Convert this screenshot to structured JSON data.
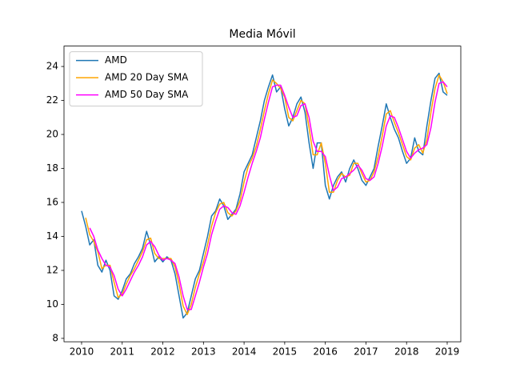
{
  "chart_data": {
    "type": "line",
    "title": "Media Móvil",
    "x": [
      2010.0,
      2010.1,
      2010.2,
      2010.3,
      2010.4,
      2010.5,
      2010.6,
      2010.7,
      2010.8,
      2010.9,
      2011.0,
      2011.1,
      2011.2,
      2011.3,
      2011.4,
      2011.5,
      2011.6,
      2011.7,
      2011.8,
      2011.9,
      2012.0,
      2012.1,
      2012.2,
      2012.3,
      2012.4,
      2012.5,
      2012.6,
      2012.7,
      2012.8,
      2012.9,
      2013.0,
      2013.1,
      2013.2,
      2013.3,
      2013.4,
      2013.5,
      2013.6,
      2013.7,
      2013.8,
      2013.9,
      2014.0,
      2014.1,
      2014.2,
      2014.3,
      2014.4,
      2014.5,
      2014.6,
      2014.7,
      2014.8,
      2014.9,
      2015.0,
      2015.1,
      2015.2,
      2015.3,
      2015.4,
      2015.5,
      2015.6,
      2015.7,
      2015.8,
      2015.9,
      2016.0,
      2016.1,
      2016.2,
      2016.3,
      2016.4,
      2016.5,
      2016.6,
      2016.7,
      2016.8,
      2016.9,
      2017.0,
      2017.1,
      2017.2,
      2017.3,
      2017.4,
      2017.5,
      2017.6,
      2017.7,
      2017.8,
      2017.9,
      2018.0,
      2018.1,
      2018.2,
      2018.3,
      2018.4,
      2018.5,
      2018.6,
      2018.7,
      2018.8,
      2018.9,
      2019.0
    ],
    "series": [
      {
        "name": "AMD",
        "color": "#1f77b4",
        "values": [
          15.5,
          14.6,
          13.5,
          13.8,
          12.3,
          11.9,
          12.6,
          12.0,
          10.5,
          10.3,
          10.8,
          11.5,
          11.8,
          12.4,
          12.8,
          13.3,
          14.3,
          13.5,
          12.5,
          12.8,
          12.5,
          12.8,
          12.6,
          11.8,
          10.5,
          9.2,
          9.5,
          10.5,
          11.5,
          12.0,
          13.0,
          14.0,
          15.2,
          15.5,
          16.2,
          15.8,
          15.0,
          15.3,
          15.6,
          16.5,
          17.8,
          18.3,
          18.8,
          19.8,
          20.8,
          22.0,
          22.8,
          23.5,
          22.5,
          22.8,
          21.5,
          20.5,
          21.0,
          21.8,
          22.2,
          21.3,
          19.5,
          18.0,
          19.5,
          19.5,
          17.0,
          16.2,
          17.0,
          17.5,
          17.8,
          17.2,
          18.0,
          18.5,
          18.0,
          17.3,
          17.0,
          17.5,
          18.0,
          19.3,
          20.5,
          21.8,
          21.0,
          20.3,
          19.8,
          19.0,
          18.3,
          18.6,
          19.8,
          19.0,
          18.8,
          20.5,
          22.0,
          23.3,
          23.6,
          22.5,
          22.3
        ]
      },
      {
        "name": "AMD 20 Day SMA",
        "color": "#ffa500",
        "values": [
          null,
          15.1,
          14.1,
          13.7,
          13.1,
          12.1,
          12.3,
          12.3,
          11.3,
          10.4,
          10.6,
          11.2,
          11.7,
          12.1,
          12.6,
          13.1,
          13.8,
          13.9,
          13.0,
          12.7,
          12.7,
          12.7,
          12.7,
          12.2,
          11.2,
          9.9,
          9.4,
          10.0,
          11.0,
          11.8,
          12.5,
          13.5,
          14.6,
          15.4,
          15.9,
          16.0,
          15.4,
          15.2,
          15.5,
          16.1,
          17.2,
          18.1,
          18.6,
          19.3,
          20.3,
          21.4,
          22.4,
          23.2,
          23.0,
          22.7,
          22.2,
          21.0,
          20.8,
          21.4,
          22.0,
          21.8,
          20.4,
          18.8,
          18.8,
          19.5,
          18.3,
          16.6,
          16.6,
          17.3,
          17.7,
          17.5,
          17.6,
          18.3,
          18.3,
          17.7,
          17.2,
          17.3,
          17.8,
          18.7,
          19.9,
          21.2,
          21.4,
          20.7,
          20.1,
          19.4,
          18.7,
          18.5,
          19.2,
          19.4,
          18.9,
          19.7,
          21.3,
          22.7,
          23.5,
          23.1,
          22.4
        ]
      },
      {
        "name": "AMD 50 Day SMA",
        "color": "#ff00ff",
        "values": [
          null,
          null,
          14.5,
          14.0,
          13.2,
          12.7,
          12.3,
          12.2,
          11.7,
          10.9,
          10.5,
          10.9,
          11.4,
          11.9,
          12.3,
          12.8,
          13.5,
          13.7,
          13.4,
          12.9,
          12.6,
          12.7,
          12.6,
          12.4,
          11.6,
          10.5,
          9.7,
          9.7,
          10.5,
          11.3,
          12.2,
          13.0,
          14.1,
          14.9,
          15.6,
          15.8,
          15.7,
          15.4,
          15.3,
          15.8,
          16.6,
          17.5,
          18.3,
          19.0,
          19.8,
          20.9,
          21.9,
          22.8,
          22.9,
          22.9,
          22.3,
          21.6,
          21.0,
          21.1,
          21.7,
          21.8,
          21.0,
          19.6,
          19.0,
          19.0,
          18.7,
          17.6,
          16.7,
          16.9,
          17.4,
          17.5,
          17.7,
          17.9,
          18.2,
          17.9,
          17.4,
          17.3,
          17.5,
          18.3,
          19.3,
          20.5,
          21.1,
          21.0,
          20.4,
          19.7,
          19.0,
          18.6,
          18.9,
          19.1,
          19.2,
          19.4,
          20.4,
          21.9,
          23.0,
          23.1,
          22.8
        ]
      }
    ],
    "xlim": [
      2009.567,
      2019.335
    ],
    "xticks": [
      2010,
      2011,
      2012,
      2013,
      2014,
      2015,
      2016,
      2017,
      2018,
      2019
    ],
    "ylim": [
      7.8,
      25.2
    ],
    "yticks": [
      8,
      10,
      12,
      14,
      16,
      18,
      20,
      22,
      24
    ],
    "legend": "upper left"
  }
}
